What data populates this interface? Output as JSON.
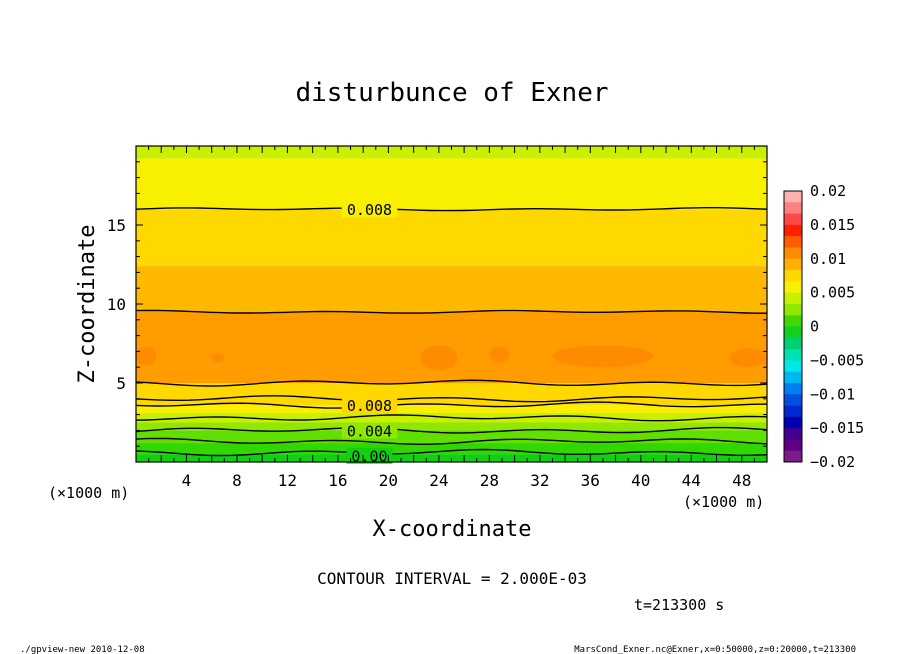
{
  "chart_data": {
    "type": "contour",
    "title": "disturbunce of Exner",
    "xlabel": "X-coordinate",
    "ylabel": "Z-coordinate",
    "x_unit_left": "(×1000 m)",
    "x_unit_right": "(×1000 m)",
    "xlim": [
      0,
      50
    ],
    "ylim": [
      0,
      20
    ],
    "xticks": [
      4,
      8,
      12,
      16,
      20,
      24,
      28,
      32,
      36,
      40,
      44,
      48
    ],
    "yticks": [
      5,
      10,
      15
    ],
    "contour_interval_text": "CONTOUR INTERVAL = 2.000E-03",
    "time_text": "t=213300 s",
    "contour_labels": [
      {
        "text": "0.008",
        "x": 18.5,
        "z": 16.0
      },
      {
        "text": "0.008",
        "x": 18.5,
        "z": 3.6
      },
      {
        "text": "0.004",
        "x": 18.5,
        "z": 2.0
      },
      {
        "text": "0.00",
        "x": 18.5,
        "z": 0.4
      }
    ],
    "bands": [
      {
        "z0": 19.2,
        "z1": 20.0,
        "value": 0.006,
        "color": "#c8f000"
      },
      {
        "z0": 16.0,
        "z1": 19.2,
        "value": 0.008,
        "color": "#f8f000"
      },
      {
        "z0": 12.4,
        "z1": 16.0,
        "value": 0.009,
        "color": "#ffd800"
      },
      {
        "z0": 9.5,
        "z1": 12.4,
        "value": 0.01,
        "color": "#ffb800"
      },
      {
        "z0": 5.0,
        "z1": 9.5,
        "value": 0.011,
        "color": "#ff9c00"
      },
      {
        "z0": 3.6,
        "z1": 5.0,
        "value": 0.009,
        "color": "#ffd800"
      },
      {
        "z0": 3.1,
        "z1": 3.6,
        "value": 0.007,
        "color": "#f8f000"
      },
      {
        "z0": 2.5,
        "z1": 3.1,
        "value": 0.006,
        "color": "#c8f000"
      },
      {
        "z0": 2.0,
        "z1": 2.5,
        "value": 0.004,
        "color": "#90e800"
      },
      {
        "z0": 1.2,
        "z1": 2.0,
        "value": 0.003,
        "color": "#60e000"
      },
      {
        "z0": 0.5,
        "z1": 1.2,
        "value": 0.001,
        "color": "#30d800"
      },
      {
        "z0": 0.0,
        "z1": 0.5,
        "value": 0.0,
        "color": "#10d010"
      }
    ],
    "contour_levels_z": [
      16.0,
      9.5,
      5.0,
      4.0,
      3.6,
      2.8,
      2.0,
      1.3,
      0.6
    ],
    "patches": [
      {
        "x": 0.8,
        "z": 6.7,
        "rx": 0.8,
        "rz": 0.6,
        "color": "#ff8c00"
      },
      {
        "x": 6.5,
        "z": 6.6,
        "rx": 0.5,
        "rz": 0.3,
        "color": "#ff8c00"
      },
      {
        "x": 24.0,
        "z": 6.6,
        "rx": 1.5,
        "rz": 0.8,
        "color": "#ff8c00"
      },
      {
        "x": 28.8,
        "z": 6.8,
        "rx": 0.8,
        "rz": 0.5,
        "color": "#ff8c00"
      },
      {
        "x": 37.0,
        "z": 6.7,
        "rx": 4.0,
        "rz": 0.7,
        "color": "#ff8c00"
      },
      {
        "x": 48.5,
        "z": 6.6,
        "rx": 1.5,
        "rz": 0.6,
        "color": "#ff8c00"
      }
    ],
    "colorbar": {
      "ticks": [
        "0.02",
        "0.015",
        "0.01",
        "0.005",
        "0",
        "−0.005",
        "−0.01",
        "−0.015",
        "−0.02"
      ],
      "colors": [
        "#ffb0b0",
        "#ff8080",
        "#ff4848",
        "#ff2000",
        "#ff5c00",
        "#ff8c00",
        "#ffb000",
        "#ffd800",
        "#f8f000",
        "#c8f000",
        "#90e800",
        "#40d800",
        "#10d020",
        "#00d070",
        "#00e0b0",
        "#00e8e8",
        "#00b8f0",
        "#0080f0",
        "#0050e0",
        "#0028d0",
        "#0000b0",
        "#400090",
        "#600080",
        "#7a1c8c"
      ]
    }
  },
  "footer": {
    "left": "./gpview-new  2010-12-08",
    "right": "MarsCond_Exner.nc@Exner,x=0:50000,z=0:20000,t=213300"
  }
}
